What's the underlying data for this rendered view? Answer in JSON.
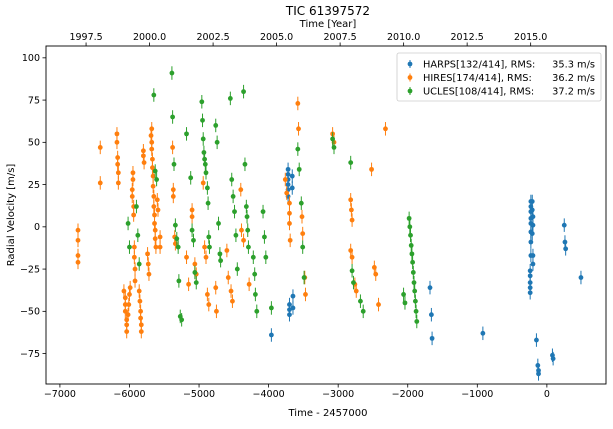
{
  "chart_data": {
    "type": "scatter",
    "title": "TIC 61397572",
    "xlabel": "Time - 2457000",
    "ylabel": "Radial Velocity [m/s]",
    "top_xlabel": "Time [Year]",
    "xlim": [
      -7200,
      850
    ],
    "ylim": [
      -93,
      107
    ],
    "x_ticks": [
      -7000,
      -6000,
      -5000,
      -4000,
      -3000,
      -2000,
      -1000,
      0
    ],
    "y_ticks": [
      -75,
      -50,
      -25,
      0,
      25,
      50,
      75,
      100
    ],
    "top_ticks": [
      {
        "label": "1997.5",
        "x": -6624
      },
      {
        "label": "2000.0",
        "x": -5711
      },
      {
        "label": "2002.5",
        "x": -4798
      },
      {
        "label": "2005.0",
        "x": -3885
      },
      {
        "label": "2007.5",
        "x": -2972
      },
      {
        "label": "2010.0",
        "x": -2059
      },
      {
        "label": "2012.5",
        "x": -1146
      },
      {
        "label": "2015.0",
        "x": -233
      }
    ],
    "grid": false,
    "legend_placement": "top-right",
    "series": [
      {
        "name": "HARPS[132/414], RMS:",
        "rms": "35.3 m/s",
        "color": "#1f77b4",
        "points": [
          [
            -3960,
            -64
          ],
          [
            -3720,
            34
          ],
          [
            -3720,
            31
          ],
          [
            -3720,
            28
          ],
          [
            -3720,
            25
          ],
          [
            -3720,
            22
          ],
          [
            -3720,
            18
          ],
          [
            -3700,
            -46
          ],
          [
            -3700,
            -49
          ],
          [
            -3700,
            -52
          ],
          [
            -3660,
            30
          ],
          [
            -3660,
            23
          ],
          [
            -3650,
            -41
          ],
          [
            -3650,
            -48
          ],
          [
            -1680,
            -36
          ],
          [
            -1660,
            -52
          ],
          [
            -1650,
            -66
          ],
          [
            -920,
            -63
          ],
          [
            -230,
            15
          ],
          [
            -230,
            12
          ],
          [
            -230,
            9
          ],
          [
            -230,
            5
          ],
          [
            -230,
            2
          ],
          [
            -230,
            -3
          ],
          [
            -230,
            -9
          ],
          [
            -230,
            -17
          ],
          [
            -240,
            -26
          ],
          [
            -240,
            -29
          ],
          [
            -240,
            -33
          ],
          [
            -240,
            -36
          ],
          [
            -240,
            -39
          ],
          [
            -210,
            15
          ],
          [
            -210,
            10
          ],
          [
            -200,
            6
          ],
          [
            -200,
            1
          ],
          [
            -210,
            -4
          ],
          [
            -200,
            -17
          ],
          [
            -200,
            -22
          ],
          [
            -150,
            -67
          ],
          [
            -130,
            -82
          ],
          [
            -120,
            -85
          ],
          [
            -120,
            -87
          ],
          [
            80,
            -76
          ],
          [
            90,
            -78
          ],
          [
            250,
            1
          ],
          [
            260,
            -9
          ],
          [
            270,
            -13
          ],
          [
            490,
            -30
          ]
        ]
      },
      {
        "name": "HIRES[174/414], RMS:",
        "rms": "36.2 m/s",
        "color": "#ff7f0e",
        "points": [
          [
            -6740,
            -2
          ],
          [
            -6740,
            -8
          ],
          [
            -6740,
            -17
          ],
          [
            -6740,
            -21
          ],
          [
            -6420,
            47
          ],
          [
            -6420,
            26
          ],
          [
            -6180,
            55
          ],
          [
            -6180,
            50
          ],
          [
            -6170,
            41
          ],
          [
            -6170,
            37
          ],
          [
            -6160,
            32
          ],
          [
            -6160,
            26
          ],
          [
            -6080,
            -38
          ],
          [
            -6060,
            -42
          ],
          [
            -6060,
            -46
          ],
          [
            -6060,
            -50
          ],
          [
            -6040,
            -55
          ],
          [
            -6040,
            -58
          ],
          [
            -6040,
            -62
          ],
          [
            -6020,
            -52
          ],
          [
            -6010,
            -46
          ],
          [
            -6000,
            -40
          ],
          [
            -5990,
            -36
          ],
          [
            -5960,
            18
          ],
          [
            -5960,
            22
          ],
          [
            -5950,
            28
          ],
          [
            -5950,
            32
          ],
          [
            -5940,
            12
          ],
          [
            -5940,
            7
          ],
          [
            -5930,
            -12
          ],
          [
            -5930,
            -18
          ],
          [
            -5920,
            -25
          ],
          [
            -5920,
            -32
          ],
          [
            -5860,
            -38
          ],
          [
            -5850,
            -44
          ],
          [
            -5840,
            -50
          ],
          [
            -5840,
            -54
          ],
          [
            -5830,
            -58
          ],
          [
            -5830,
            -62
          ],
          [
            -5800,
            42
          ],
          [
            -5800,
            45
          ],
          [
            -5790,
            38
          ],
          [
            -5740,
            -16
          ],
          [
            -5730,
            -22
          ],
          [
            -5720,
            -28
          ],
          [
            -5690,
            54
          ],
          [
            -5680,
            58
          ],
          [
            -5680,
            50
          ],
          [
            -5680,
            46
          ],
          [
            -5670,
            40
          ],
          [
            -5670,
            35
          ],
          [
            -5660,
            30
          ],
          [
            -5660,
            24
          ],
          [
            -5650,
            18
          ],
          [
            -5650,
            12
          ],
          [
            -5640,
            7
          ],
          [
            -5640,
            2
          ],
          [
            -5630,
            -2
          ],
          [
            -5630,
            -7
          ],
          [
            -5620,
            -12
          ],
          [
            -5600,
            16
          ],
          [
            -5590,
            10
          ],
          [
            -5560,
            -6
          ],
          [
            -5560,
            -12
          ],
          [
            -5380,
            47
          ],
          [
            -5370,
            22
          ],
          [
            -5370,
            18
          ],
          [
            -5350,
            -6
          ],
          [
            -5340,
            -10
          ],
          [
            -5180,
            -18
          ],
          [
            -5150,
            -34
          ],
          [
            -5100,
            10
          ],
          [
            -5100,
            6
          ],
          [
            -5060,
            -22
          ],
          [
            -5040,
            -28
          ],
          [
            -4940,
            26
          ],
          [
            -4920,
            -12
          ],
          [
            -4900,
            -18
          ],
          [
            -4880,
            -40
          ],
          [
            -4860,
            -46
          ],
          [
            -4760,
            -36
          ],
          [
            -4750,
            -50
          ],
          [
            -4600,
            -14
          ],
          [
            -4580,
            -30
          ],
          [
            -4540,
            -38
          ],
          [
            -4520,
            -44
          ],
          [
            -4400,
            22
          ],
          [
            -4390,
            -2
          ],
          [
            -4360,
            -8
          ],
          [
            -4280,
            -34
          ],
          [
            -3760,
            28
          ],
          [
            -3740,
            20
          ],
          [
            -3700,
            14
          ],
          [
            -3700,
            8
          ],
          [
            -3700,
            2
          ],
          [
            -3690,
            -8
          ],
          [
            -3580,
            73
          ],
          [
            -3570,
            58
          ],
          [
            -3520,
            6
          ],
          [
            -3510,
            -4
          ],
          [
            -3480,
            -30
          ],
          [
            -3470,
            -40
          ],
          [
            -3080,
            55
          ],
          [
            -3060,
            50
          ],
          [
            -2820,
            16
          ],
          [
            -2810,
            10
          ],
          [
            -2800,
            4
          ],
          [
            -2820,
            -14
          ],
          [
            -2800,
            -18
          ],
          [
            -2760,
            -34
          ],
          [
            -2740,
            -38
          ],
          [
            -2520,
            34
          ],
          [
            -2480,
            -24
          ],
          [
            -2460,
            -28
          ],
          [
            -2420,
            -46
          ],
          [
            -2320,
            58
          ]
        ]
      },
      {
        "name": "UCLES[108/414], RMS:",
        "rms": "37.2 m/s",
        "color": "#2ca02c",
        "points": [
          [
            -6020,
            2
          ],
          [
            -6000,
            -12
          ],
          [
            -5900,
            12
          ],
          [
            -5880,
            -5
          ],
          [
            -5860,
            -22
          ],
          [
            -5650,
            78
          ],
          [
            -5630,
            33
          ],
          [
            -5610,
            28
          ],
          [
            -5390,
            91
          ],
          [
            -5380,
            65
          ],
          [
            -5360,
            37
          ],
          [
            -5340,
            1
          ],
          [
            -5320,
            -7
          ],
          [
            -5300,
            -12
          ],
          [
            -5290,
            -32
          ],
          [
            -5270,
            -53
          ],
          [
            -5250,
            -55
          ],
          [
            -5180,
            55
          ],
          [
            -5120,
            29
          ],
          [
            -5100,
            -2
          ],
          [
            -5080,
            -8
          ],
          [
            -5060,
            -27
          ],
          [
            -5040,
            -33
          ],
          [
            -4960,
            74
          ],
          [
            -4950,
            63
          ],
          [
            -4940,
            52
          ],
          [
            -4930,
            44
          ],
          [
            -4920,
            40
          ],
          [
            -4910,
            37
          ],
          [
            -4900,
            32
          ],
          [
            -4880,
            23
          ],
          [
            -4870,
            14
          ],
          [
            -4860,
            -6
          ],
          [
            -4850,
            -12
          ],
          [
            -4760,
            60
          ],
          [
            -4740,
            50
          ],
          [
            -4720,
            2
          ],
          [
            -4700,
            -16
          ],
          [
            -4690,
            -20
          ],
          [
            -4550,
            76
          ],
          [
            -4530,
            28
          ],
          [
            -4510,
            18
          ],
          [
            -4490,
            9
          ],
          [
            -4470,
            -5
          ],
          [
            -4450,
            -25
          ],
          [
            -4360,
            80
          ],
          [
            -4340,
            37
          ],
          [
            -4320,
            12
          ],
          [
            -4310,
            6
          ],
          [
            -4300,
            -2
          ],
          [
            -4290,
            -12
          ],
          [
            -4220,
            -18
          ],
          [
            -4200,
            -28
          ],
          [
            -4190,
            -40
          ],
          [
            -4170,
            -50
          ],
          [
            -4080,
            9
          ],
          [
            -4060,
            -6
          ],
          [
            -4040,
            -18
          ],
          [
            -3960,
            -48
          ],
          [
            -3580,
            46
          ],
          [
            -3560,
            34
          ],
          [
            -3530,
            14
          ],
          [
            -3510,
            -12
          ],
          [
            -3490,
            -30
          ],
          [
            -3080,
            52
          ],
          [
            -3060,
            47
          ],
          [
            -2820,
            38
          ],
          [
            -2800,
            -26
          ],
          [
            -2780,
            -33
          ],
          [
            -2680,
            -44
          ],
          [
            -2640,
            -50
          ],
          [
            -2060,
            -40
          ],
          [
            -2040,
            -45
          ],
          [
            -1980,
            5
          ],
          [
            -1970,
            0
          ],
          [
            -1960,
            -5
          ],
          [
            -1950,
            -11
          ],
          [
            -1940,
            -16
          ],
          [
            -1930,
            -21
          ],
          [
            -1920,
            -27
          ],
          [
            -1910,
            -33
          ],
          [
            -1900,
            -38
          ],
          [
            -1890,
            -44
          ],
          [
            -1880,
            -50
          ],
          [
            -1870,
            -56
          ]
        ]
      }
    ]
  }
}
